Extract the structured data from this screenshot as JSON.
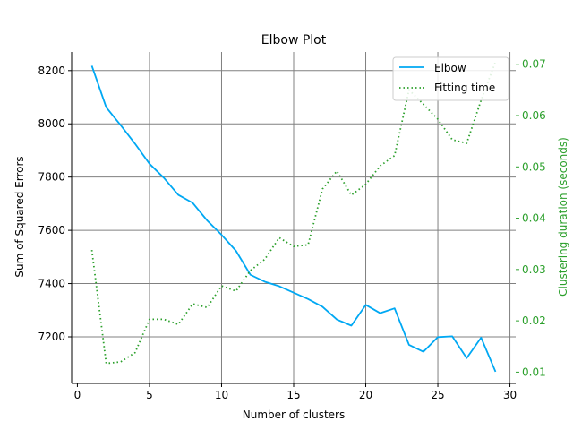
{
  "chart_data": {
    "type": "line",
    "title": "Elbow Plot",
    "xlabel": "Number of clusters",
    "ylabel": "Sum of Squared Errors",
    "y2label": "Clustering duration (seconds)",
    "xlim": [
      -0.4,
      30.4
    ],
    "ylim": [
      7025,
      8270
    ],
    "y2lim": [
      0.0078,
      0.0724
    ],
    "xticks": [
      0,
      5,
      10,
      15,
      20,
      25,
      30
    ],
    "yticks": [
      7200,
      7400,
      7600,
      7800,
      8000,
      8200
    ],
    "y2ticks": [
      0.01,
      0.02,
      0.03,
      0.04,
      0.05,
      0.06,
      0.07
    ],
    "grid": true,
    "legend_position": "top-right",
    "colors": {
      "elbow": "#00a8f3",
      "fitting": "#2ca02c",
      "grid": "#808080"
    },
    "x": [
      1,
      2,
      3,
      4,
      5,
      6,
      7,
      8,
      9,
      10,
      11,
      12,
      13,
      14,
      15,
      16,
      17,
      18,
      19,
      20,
      21,
      22,
      23,
      24,
      25,
      26,
      27,
      28,
      29
    ],
    "series": [
      {
        "name": "Elbow",
        "axis": "left",
        "style": "solid",
        "values": [
          8218,
          8062,
          7995,
          7925,
          7850,
          7797,
          7733,
          7703,
          7637,
          7583,
          7523,
          7433,
          7407,
          7390,
          7366,
          7342,
          7313,
          7265,
          7242,
          7320,
          7289,
          7307,
          7170,
          7144,
          7199,
          7202,
          7120,
          7197,
          7069
        ]
      },
      {
        "name": "Fitting time",
        "axis": "right",
        "style": "dotted",
        "values": [
          0.0338,
          0.0117,
          0.012,
          0.0138,
          0.0203,
          0.0203,
          0.0193,
          0.0233,
          0.0226,
          0.0268,
          0.0258,
          0.0298,
          0.032,
          0.0362,
          0.0345,
          0.0348,
          0.0457,
          0.0492,
          0.0445,
          0.0466,
          0.0502,
          0.0522,
          0.065,
          0.0622,
          0.0593,
          0.0553,
          0.0546,
          0.063,
          0.0705
        ]
      }
    ]
  }
}
